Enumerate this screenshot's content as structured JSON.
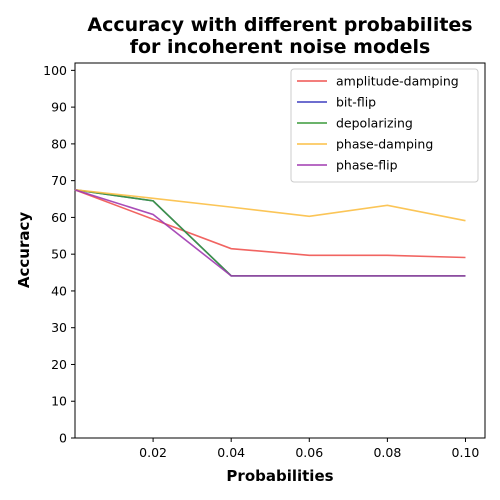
{
  "chart_data": {
    "type": "line",
    "title": "Accuracy with different probabilites\nfor incoherent noise models",
    "xlabel": "Probabilities",
    "ylabel": "Accuracy",
    "xlim": [
      0.0,
      0.105
    ],
    "ylim": [
      0,
      102
    ],
    "x_ticks": [
      0.02,
      0.04,
      0.06,
      0.08,
      0.1
    ],
    "x_tick_labels": [
      "0.02",
      "0.04",
      "0.06",
      "0.08",
      "0.10"
    ],
    "y_ticks": [
      0,
      10,
      20,
      30,
      40,
      50,
      60,
      70,
      80,
      90,
      100
    ],
    "y_tick_labels": [
      "0",
      "10",
      "20",
      "30",
      "40",
      "50",
      "60",
      "70",
      "80",
      "90",
      "100"
    ],
    "x": [
      0.0,
      0.02,
      0.04,
      0.06,
      0.08,
      0.1
    ],
    "legend_position": "top-right",
    "grid": false,
    "series": [
      {
        "name": "amplitude-damping",
        "color": "#ef5350",
        "values": [
          67.5,
          59.5,
          51.5,
          49.7,
          49.7,
          49.1
        ]
      },
      {
        "name": "bit-flip",
        "color": "#3f3fbf",
        "values": [
          67.5,
          64.5,
          44.1,
          44.1,
          44.1,
          44.1
        ]
      },
      {
        "name": "depolarizing",
        "color": "#3a9a3a",
        "values": [
          67.5,
          64.5,
          44.1,
          44.1,
          44.1,
          44.1
        ]
      },
      {
        "name": "phase-damping",
        "color": "#fbbf45",
        "values": [
          67.5,
          65.2,
          62.8,
          60.3,
          63.3,
          59.1
        ]
      },
      {
        "name": "phase-flip",
        "color": "#a03ab0",
        "values": [
          67.5,
          60.8,
          44.1,
          44.1,
          44.1,
          44.1
        ]
      }
    ]
  }
}
